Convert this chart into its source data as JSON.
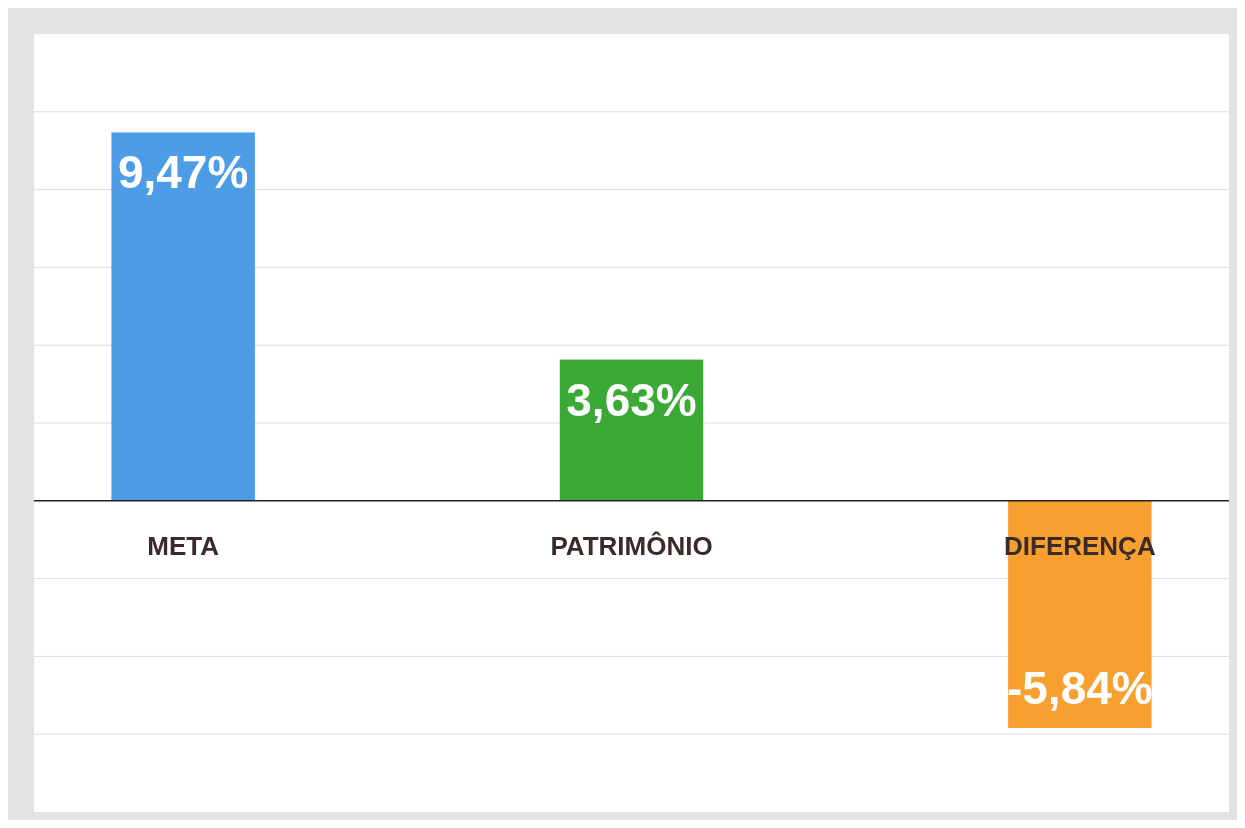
{
  "chart_data": {
    "type": "bar",
    "categories": [
      "META",
      "PATRIMÔNIO",
      "DIFERENÇA"
    ],
    "values": [
      9.47,
      3.63,
      -5.84
    ],
    "colors": [
      "#4d9de6",
      "#3aa935",
      "#f7a030"
    ],
    "value_labels": [
      "9,47%",
      "3,63%",
      "-5,84%"
    ],
    "ylim": [
      -8,
      12
    ],
    "yticks": [
      {
        "value": -6,
        "label": null
      },
      {
        "value": -4,
        "label": null
      },
      {
        "value": -2,
        "label": null
      },
      {
        "value": 2,
        "label": null
      },
      {
        "value": 4,
        "label": null
      },
      {
        "value": 6,
        "label": null
      },
      {
        "value": 8,
        "label": null
      },
      {
        "value": 10,
        "label": null
      }
    ],
    "grid": "y",
    "tick_labels": "x"
  }
}
